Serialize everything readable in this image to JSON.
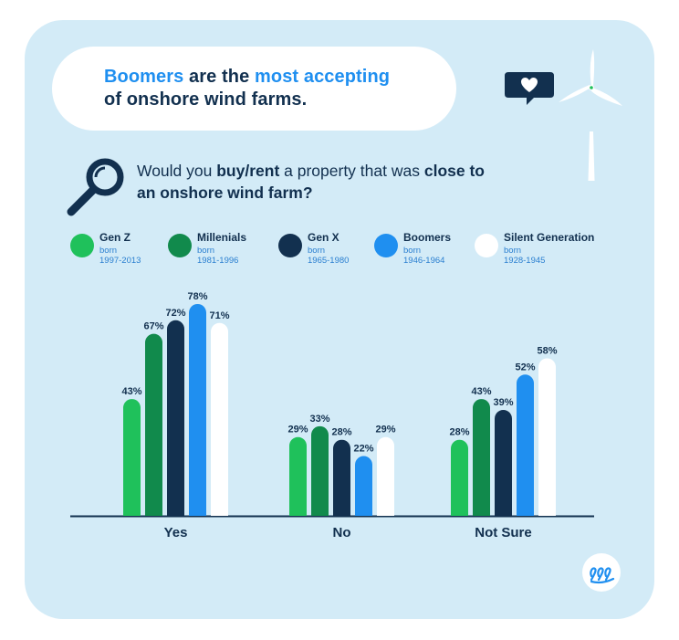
{
  "title": {
    "line1_highlight_1": "Boomers",
    "line1_plain": " are the ",
    "line1_highlight_2": "most accepting",
    "line2": "of onshore wind farms."
  },
  "question": {
    "line1_pre": "Would you ",
    "line1_bold": "buy/rent",
    "line1_mid": " a property that was ",
    "line1_bold2": "close to",
    "line2_bold": "an onshore wind farm?"
  },
  "legend": [
    {
      "name": "Gen Z",
      "born": "born",
      "years": "1997-2013",
      "color": "#1fc15b"
    },
    {
      "name": "Millenials",
      "born": "born",
      "years": "1981-1996",
      "color": "#118a4c"
    },
    {
      "name": "Gen X",
      "born": "born",
      "years": "1965-1980",
      "color": "#12304f"
    },
    {
      "name": "Boomers",
      "born": "born",
      "years": "1946-1964",
      "color": "#1f8ff0"
    },
    {
      "name": "Silent Generation",
      "born": "born",
      "years": "1928-1945",
      "color": "#ffffff"
    }
  ],
  "icons": {
    "magnifier": "magnifier-icon",
    "heart_bubble": "heart-speech-bubble-icon",
    "turbine": "wind-turbine-icon",
    "logo": "brand-logo-icon"
  },
  "chart_data": {
    "type": "bar",
    "categories": [
      "Yes",
      "No",
      "Not Sure"
    ],
    "series": [
      {
        "name": "Gen Z",
        "values": [
          43,
          29,
          28
        ],
        "color": "#1fc15b"
      },
      {
        "name": "Millenials",
        "values": [
          67,
          33,
          43
        ],
        "color": "#118a4c"
      },
      {
        "name": "Gen X",
        "values": [
          72,
          28,
          39
        ],
        "color": "#12304f"
      },
      {
        "name": "Boomers",
        "values": [
          78,
          22,
          52
        ],
        "color": "#1f8ff0"
      },
      {
        "name": "Silent Generation",
        "values": [
          71,
          29,
          58
        ],
        "color": "#ffffff"
      }
    ],
    "value_suffix": "%",
    "ylim": [
      0,
      80
    ],
    "grid": false,
    "legend_position": "top"
  }
}
